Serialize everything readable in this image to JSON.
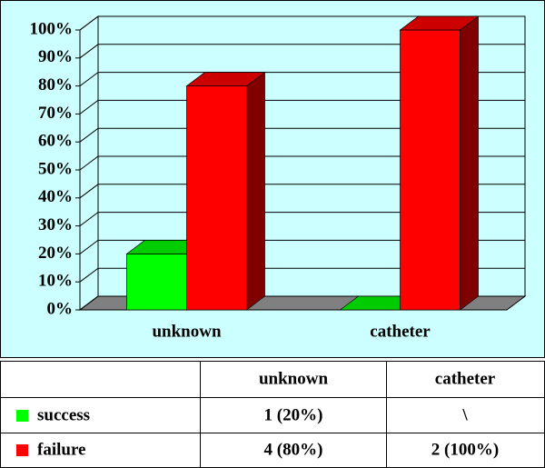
{
  "chart_data": {
    "type": "bar3d",
    "categories": [
      "unknown",
      "catheter"
    ],
    "series": [
      {
        "name": "success",
        "color": "#00ff00",
        "values": [
          20,
          0
        ]
      },
      {
        "name": "failure",
        "color": "#ff0000",
        "values": [
          80,
          100
        ]
      }
    ],
    "ylim": [
      0,
      100
    ],
    "yticks": [
      {
        "value": 0,
        "label": "0%"
      },
      {
        "value": 10,
        "label": "10%"
      },
      {
        "value": 20,
        "label": "20%"
      },
      {
        "value": 30,
        "label": "30%"
      },
      {
        "value": 40,
        "label": "40%"
      },
      {
        "value": 50,
        "label": "50%"
      },
      {
        "value": 60,
        "label": "60%"
      },
      {
        "value": 70,
        "label": "70%"
      },
      {
        "value": 80,
        "label": "80%"
      },
      {
        "value": 90,
        "label": "90%"
      },
      {
        "value": 100,
        "label": "100%"
      }
    ],
    "grid": true,
    "table": {
      "rows": [
        [
          "1 (20%)",
          "\\"
        ],
        [
          "4 (80%)",
          "2 (100%)"
        ]
      ]
    }
  }
}
